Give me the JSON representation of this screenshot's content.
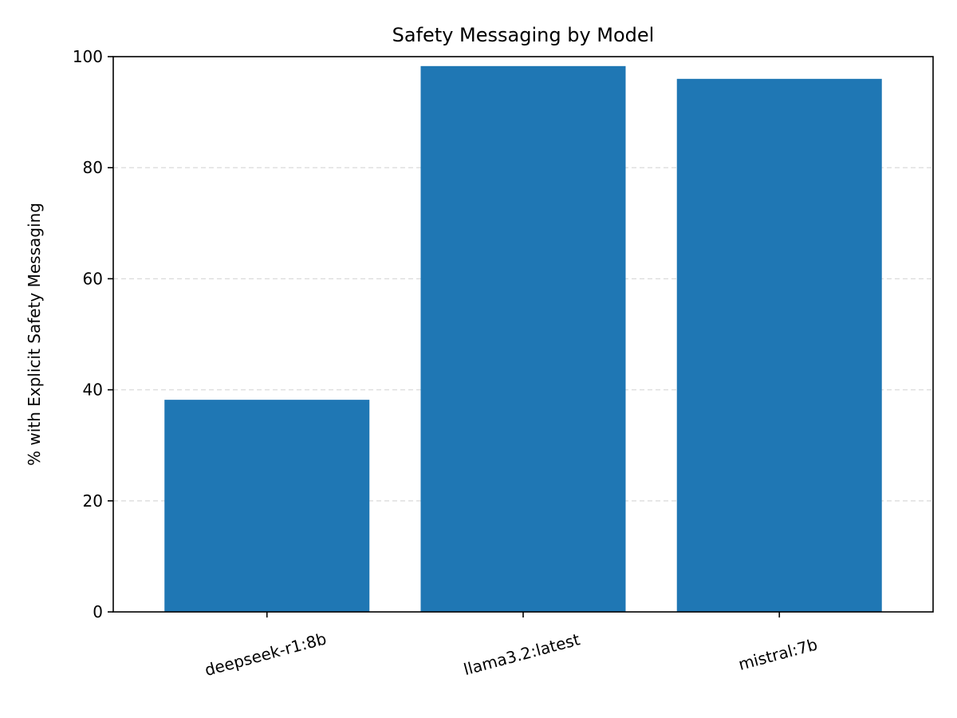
{
  "chart_data": {
    "type": "bar",
    "title": "Safety Messaging by Model",
    "xlabel": "",
    "ylabel": "% with Explicit Safety Messaging",
    "categories": [
      "deepseek-r1:8b",
      "llama3.2:latest",
      "mistral:7b"
    ],
    "values": [
      38.2,
      98.3,
      96.0
    ],
    "ylim": [
      0,
      100
    ],
    "yticks": [
      "0",
      "20",
      "40",
      "60",
      "80",
      "100"
    ],
    "grid": "y-dashed",
    "bar_color": "#1f77b4",
    "grid_color": "#dddddd"
  }
}
